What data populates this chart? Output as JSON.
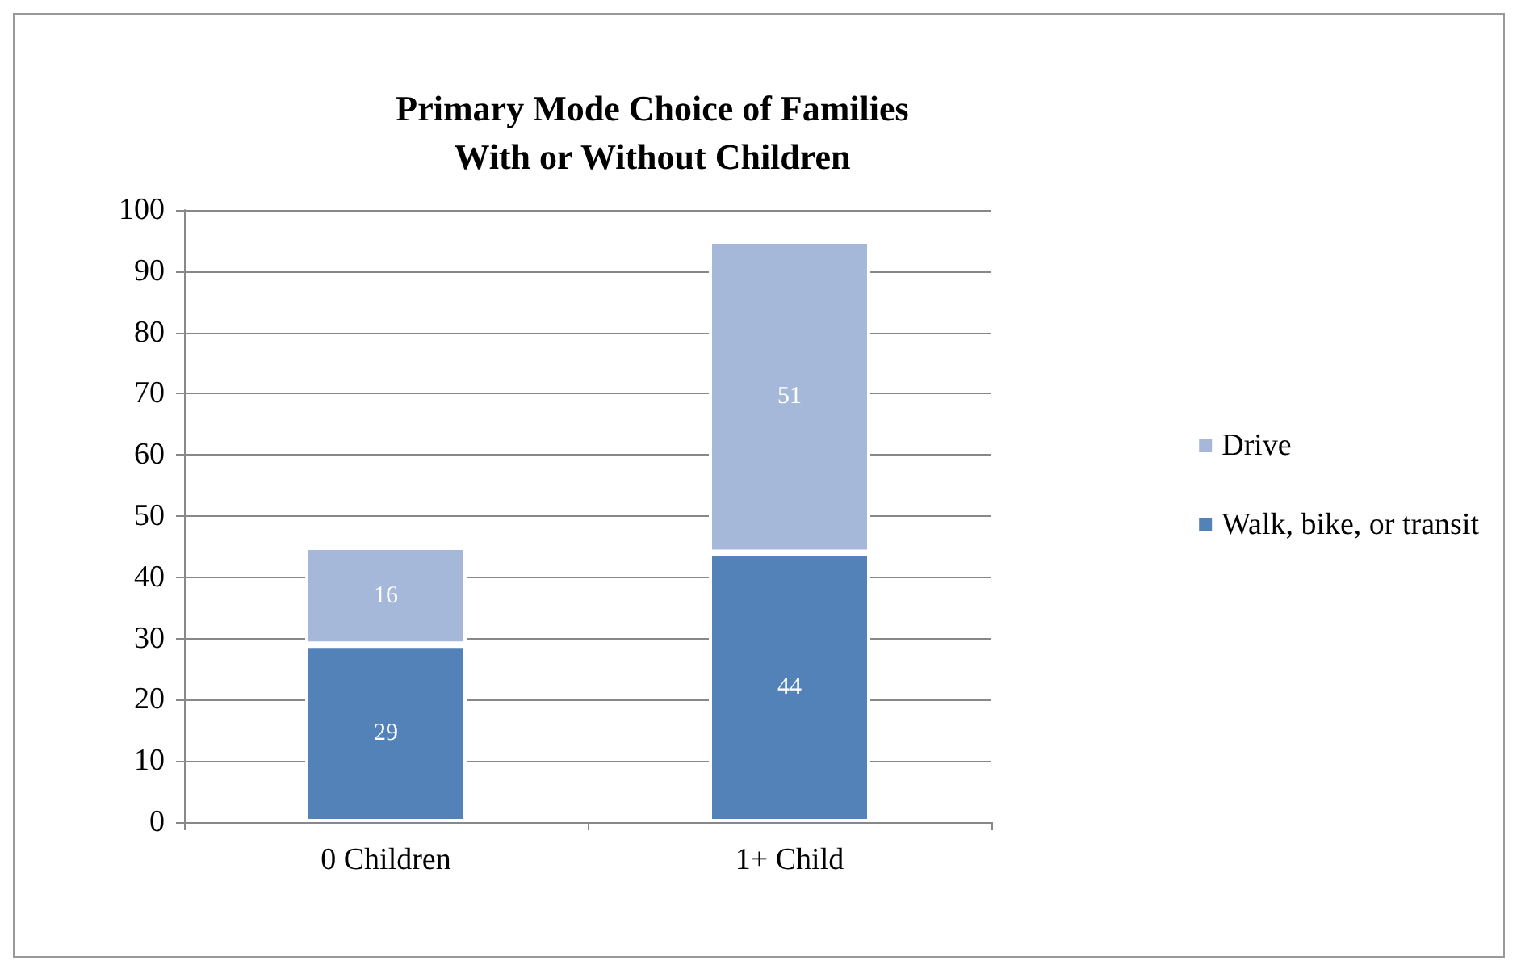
{
  "chart_data": {
    "type": "bar",
    "title": "Primary Mode Choice of Families\nWith or Without Children",
    "categories": [
      "0 Children",
      "1+ Child"
    ],
    "stacked": true,
    "series": [
      {
        "name": "Walk, bike, or transit",
        "color": "#5282b8",
        "values": [
          29,
          44
        ]
      },
      {
        "name": "Drive",
        "color": "#a5b8d9",
        "values": [
          16,
          51
        ]
      }
    ],
    "ylim": [
      0,
      100
    ],
    "yticks": [
      0,
      10,
      20,
      30,
      40,
      50,
      60,
      70,
      80,
      90,
      100
    ],
    "grid": "y",
    "legend": "right",
    "data_labels": true
  }
}
